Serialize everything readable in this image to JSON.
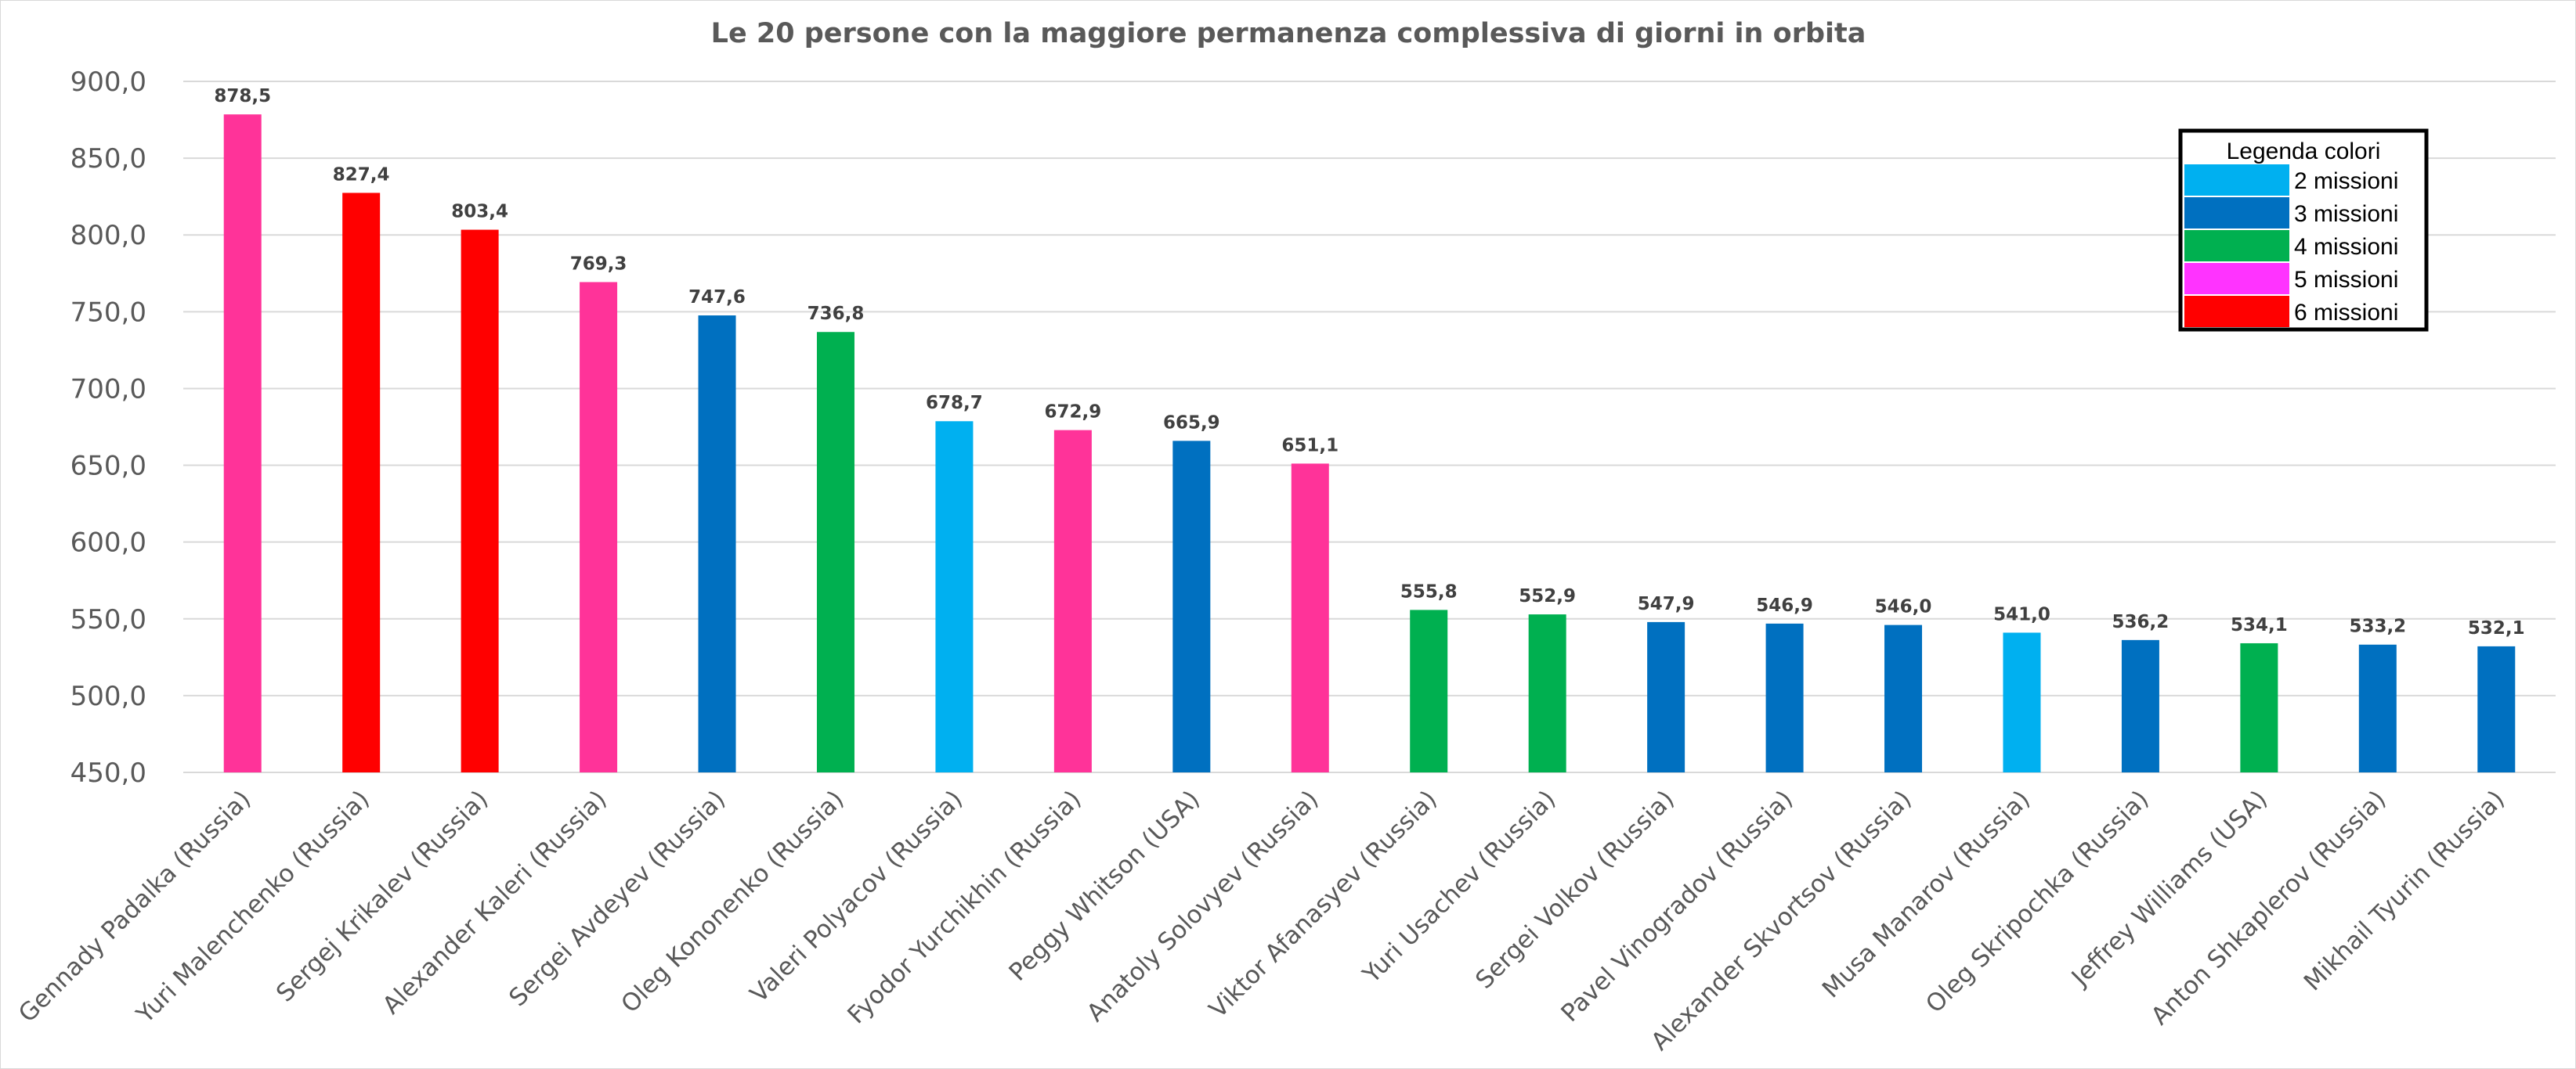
{
  "chart_data": {
    "type": "bar",
    "title": "Le 20 persone con la maggiore permanenza complessiva di giorni in orbita",
    "xlabel": "",
    "ylabel": "",
    "ylim": [
      450,
      900
    ],
    "yticks": [
      "450,0",
      "500,0",
      "550,0",
      "600,0",
      "650,0",
      "700,0",
      "750,0",
      "800,0",
      "850,0",
      "900,0"
    ],
    "grid": true,
    "legend_position": "top-right",
    "categories": [
      "Gennady Padalka (Russia)",
      "Yuri Malenchenko (Russia)",
      "Sergej Krikalev (Russia)",
      "Alexander Kaleri (Russia)",
      "Sergei Avdeyev (Russia)",
      "Oleg Kononenko (Russia)",
      "Valeri Polyacov (Russia)",
      "Fyodor Yurchikhin (Russia)",
      "Peggy Whitson (USA)",
      "Anatoly Solovyev (Russia)",
      "Viktor Afanasyev (Russia)",
      "Yuri Usachev (Russia)",
      "Sergei Volkov (Russia)",
      "Pavel Vinogradov (Russia)",
      "Alexander Skvortsov (Russia)",
      "Musa Manarov (Russia)",
      "Oleg Skripochka (Russia)",
      "Jeffrey Williams (USA)",
      "Anton Shkaplerov (Russia)",
      "Mikhail Tyurin (Russia)"
    ],
    "values": [
      878.5,
      827.4,
      803.4,
      769.3,
      747.6,
      736.8,
      678.7,
      672.9,
      665.9,
      651.1,
      555.8,
      552.9,
      547.9,
      546.9,
      546.0,
      541.0,
      536.2,
      534.1,
      533.2,
      532.1
    ],
    "value_labels": [
      "878,5",
      "827,4",
      "803,4",
      "769,3",
      "747,6",
      "736,8",
      "678,7",
      "672,9",
      "665,9",
      "651,1",
      "555,8",
      "552,9",
      "547,9",
      "546,9",
      "546,0",
      "541,0",
      "536,2",
      "534,1",
      "533,2",
      "532,1"
    ],
    "bar_colors": [
      "#ff3399",
      "#ff0000",
      "#ff0000",
      "#ff3399",
      "#0070c0",
      "#00b050",
      "#00b0f0",
      "#ff3399",
      "#0070c0",
      "#ff3399",
      "#00b050",
      "#00b050",
      "#0070c0",
      "#0070c0",
      "#0070c0",
      "#00b0f0",
      "#0070c0",
      "#00b050",
      "#0070c0",
      "#0070c0"
    ],
    "legend": {
      "title": "Legenda colori",
      "entries": [
        {
          "label": "2 missioni",
          "color": "#00b0f0"
        },
        {
          "label": "3 missioni",
          "color": "#0070c0"
        },
        {
          "label": "4 missioni",
          "color": "#00b050"
        },
        {
          "label": "5 missioni",
          "color": "#ff33ff"
        },
        {
          "label": "6 missioni",
          "color": "#ff0000"
        }
      ]
    }
  }
}
